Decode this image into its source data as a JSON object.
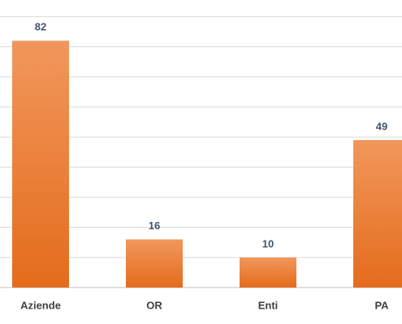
{
  "chart_data": {
    "type": "bar",
    "categories": [
      "Aziende",
      "OR",
      "Enti",
      "PA"
    ],
    "values": [
      82,
      16,
      10,
      49
    ],
    "color": "#ed7d31",
    "ylim": [
      0,
      95
    ],
    "yticks": [
      0,
      10,
      20,
      30,
      40,
      50,
      60,
      70,
      80,
      90
    ],
    "grid": true
  }
}
